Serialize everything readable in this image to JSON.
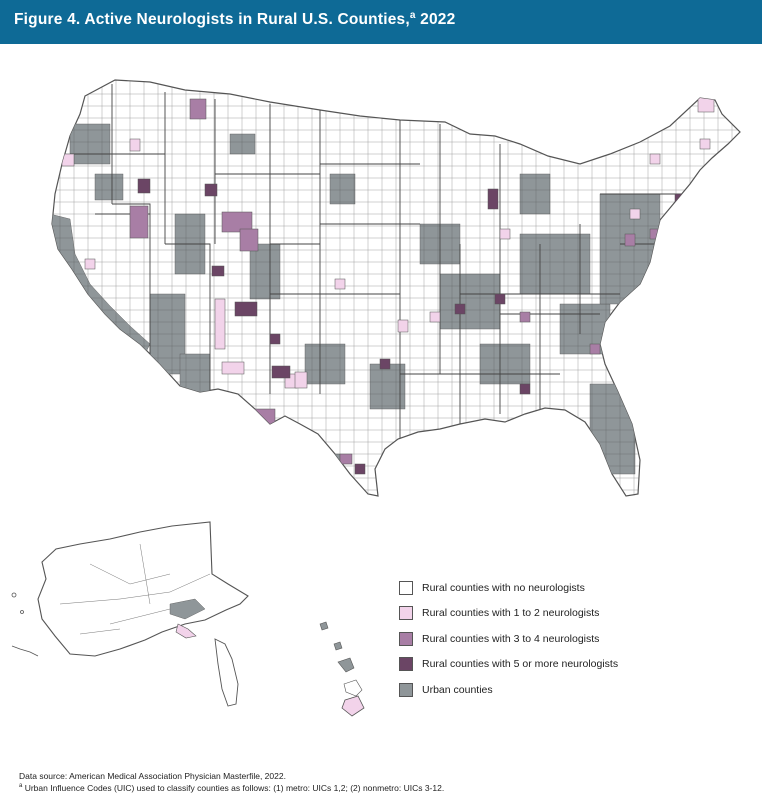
{
  "figure": {
    "title": "Figure 4. Active Neurologists in Rural U.S. Counties,",
    "title_superscript": "a",
    "title_year": " 2022"
  },
  "colors": {
    "header_bg": "#0e6a96",
    "none": "#ffffff",
    "one_two": "#f2d3ea",
    "three_four": "#a87ea5",
    "five_plus": "#6b4565",
    "urban": "#8f9699",
    "border": "#555555"
  },
  "legend": [
    {
      "key": "none",
      "label": "Rural counties with no neurologists"
    },
    {
      "key": "one_two",
      "label": "Rural counties with 1 to 2 neurologists"
    },
    {
      "key": "three_four",
      "label": "Rural counties with 3 to 4 neurologists"
    },
    {
      "key": "five_plus",
      "label": "Rural counties with 5 or more neurologists"
    },
    {
      "key": "urban",
      "label": "Urban counties"
    }
  ],
  "footnotes": {
    "source": "Data source: American Medical Association Physician Masterfile, 2022.",
    "note_marker": "a",
    "note": " Urban Influence Codes (UIC) used to classify counties as follows: (1) metro: UICs 1,2; (2) nonmetro: UICs 3-12."
  },
  "map": {
    "regions": [
      "contiguous-us",
      "alaska",
      "hawaii"
    ]
  }
}
